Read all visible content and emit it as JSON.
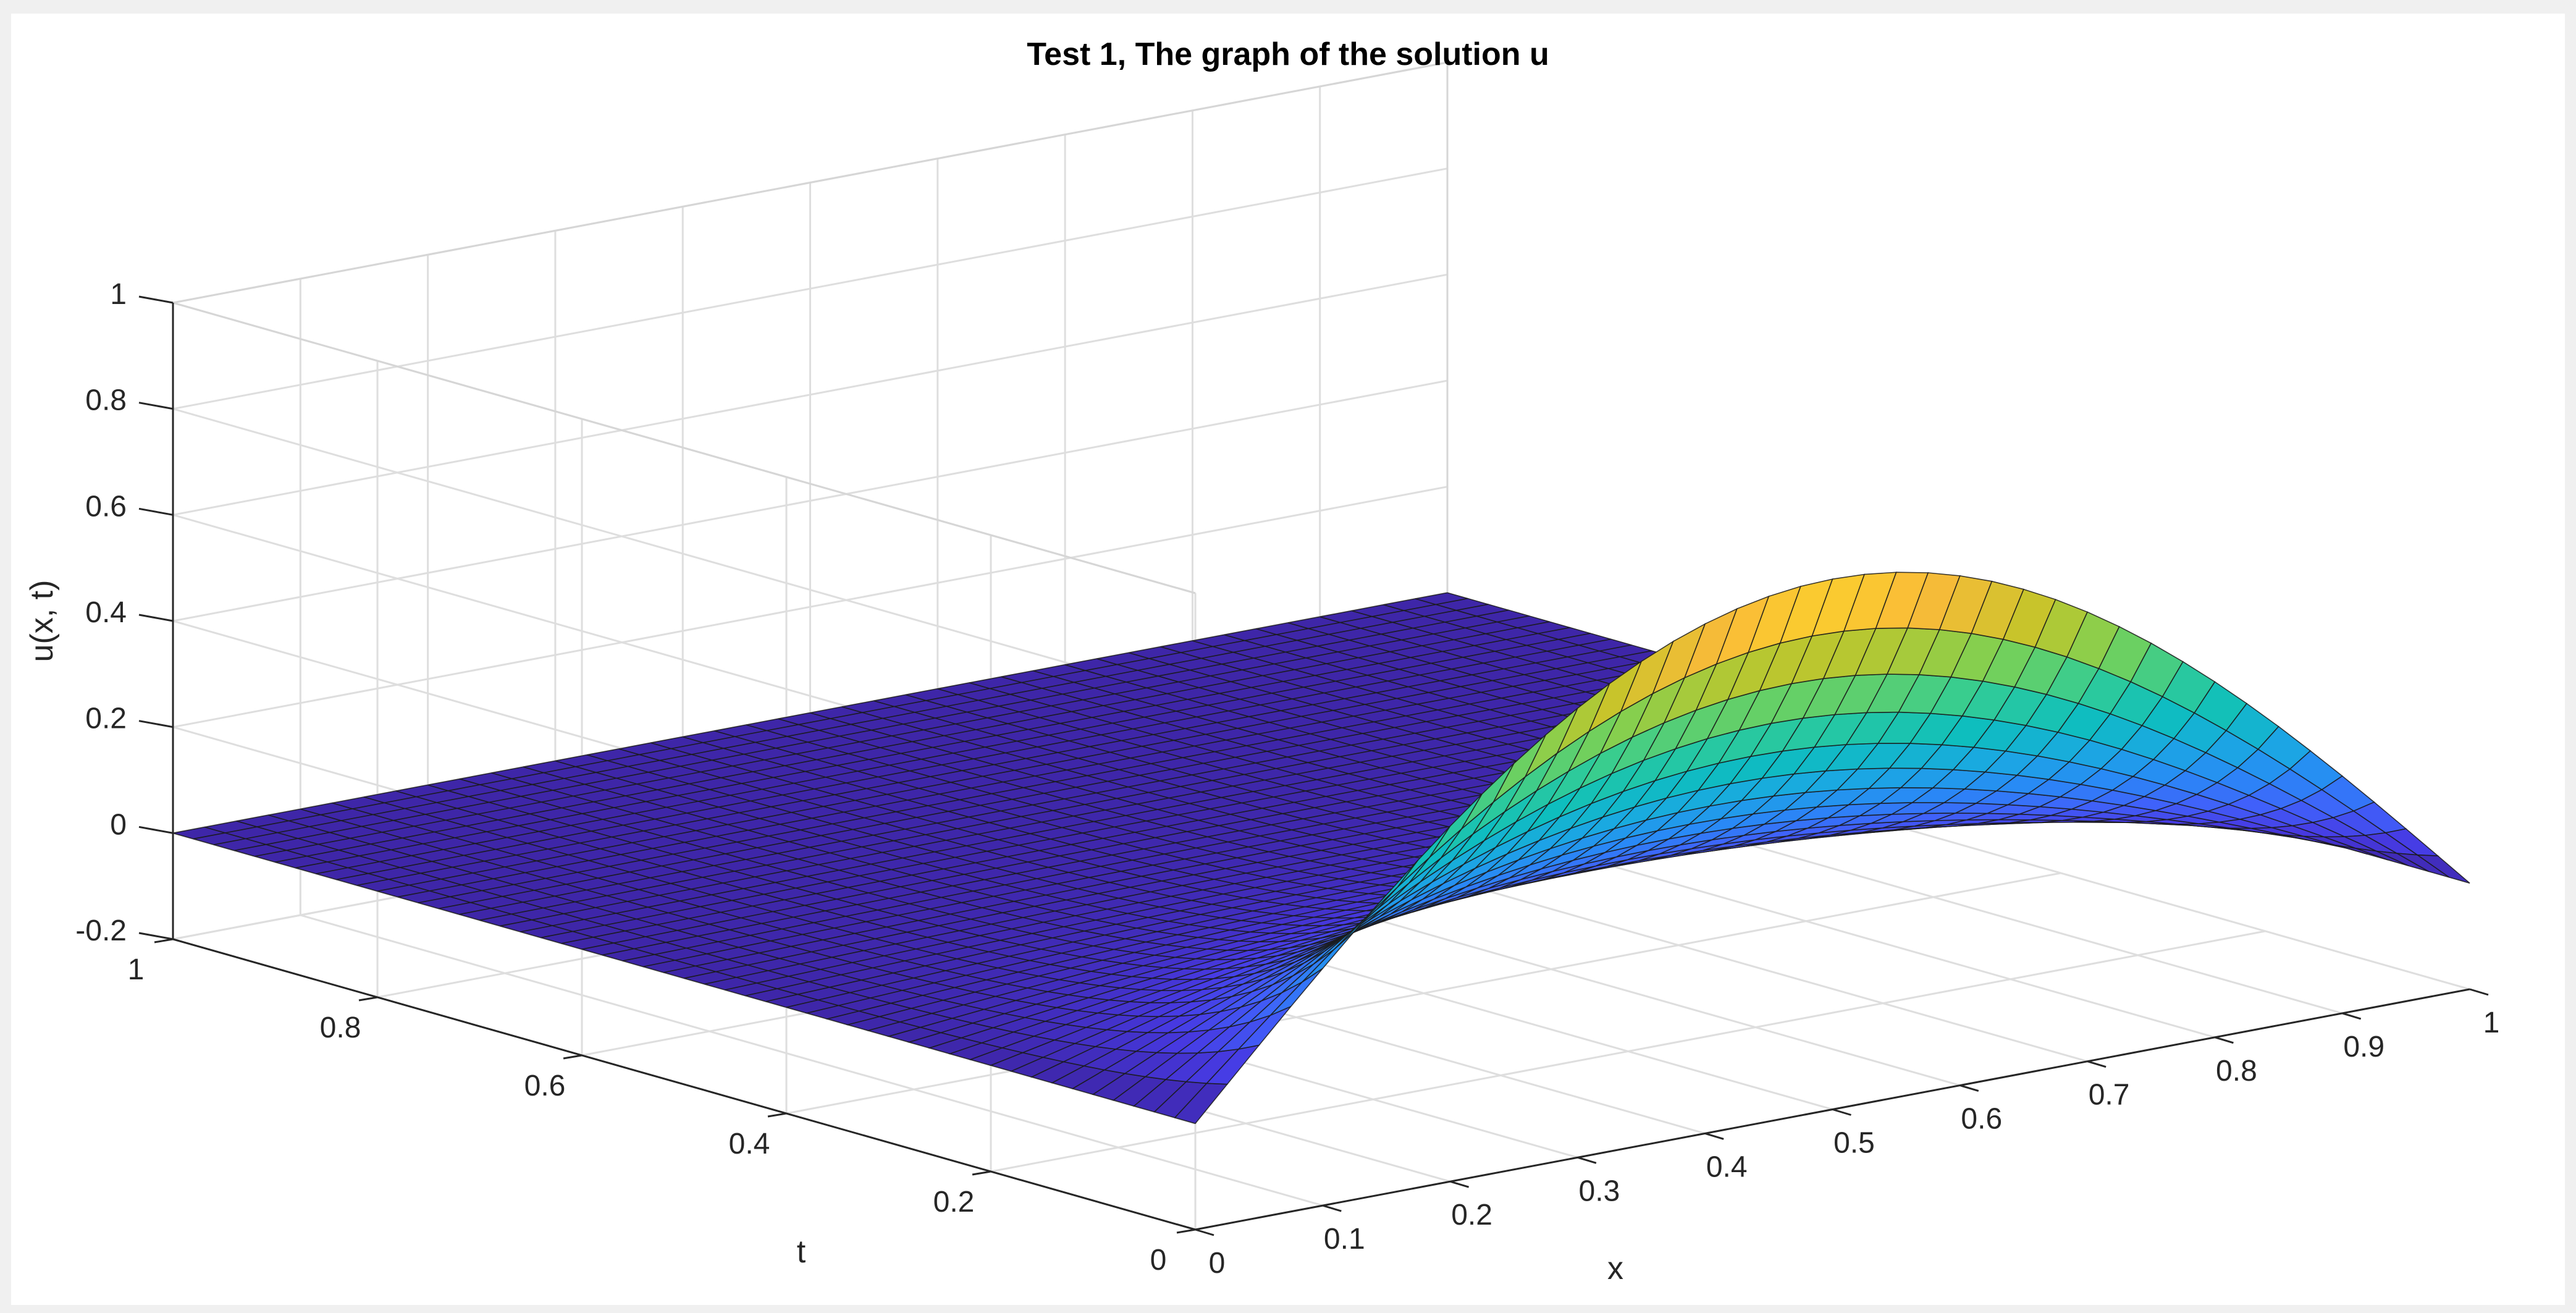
{
  "chart_data": {
    "type": "surface",
    "title": "Test 1, The graph of the solution u",
    "xlabel": "x",
    "ylabel": "t",
    "zlabel": "u(x, t)",
    "xlim": [
      0,
      1
    ],
    "ylim": [
      0,
      1
    ],
    "zlim": [
      -0.2,
      1
    ],
    "x_ticks": [
      "0",
      "0.1",
      "0.2",
      "0.3",
      "0.4",
      "0.5",
      "0.6",
      "0.7",
      "0.8",
      "0.9",
      "1"
    ],
    "y_ticks": [
      "0",
      "0.2",
      "0.4",
      "0.6",
      "0.8",
      "1"
    ],
    "z_ticks": [
      "-0.2",
      "0",
      "0.2",
      "0.4",
      "0.6",
      "0.8",
      "1"
    ],
    "grid": true,
    "colormap": "parula",
    "surface": {
      "description_function": "u(x,t) = exp(-8 t) * sin(pi x) approximately; peak 0.8 at x=0.5, t=0 decaying to 0 as t increases",
      "x_samples": [
        0,
        0.1,
        0.2,
        0.3,
        0.4,
        0.5,
        0.6,
        0.7,
        0.8,
        0.9,
        1
      ],
      "t_samples": [
        0,
        0.05,
        0.1,
        0.15,
        0.2,
        0.3,
        0.4,
        0.6,
        0.8,
        1
      ],
      "u_at_x_0_5": [
        0.8,
        0.54,
        0.36,
        0.24,
        0.16,
        0.07,
        0.03,
        0.01,
        0.0,
        0.0
      ]
    }
  }
}
